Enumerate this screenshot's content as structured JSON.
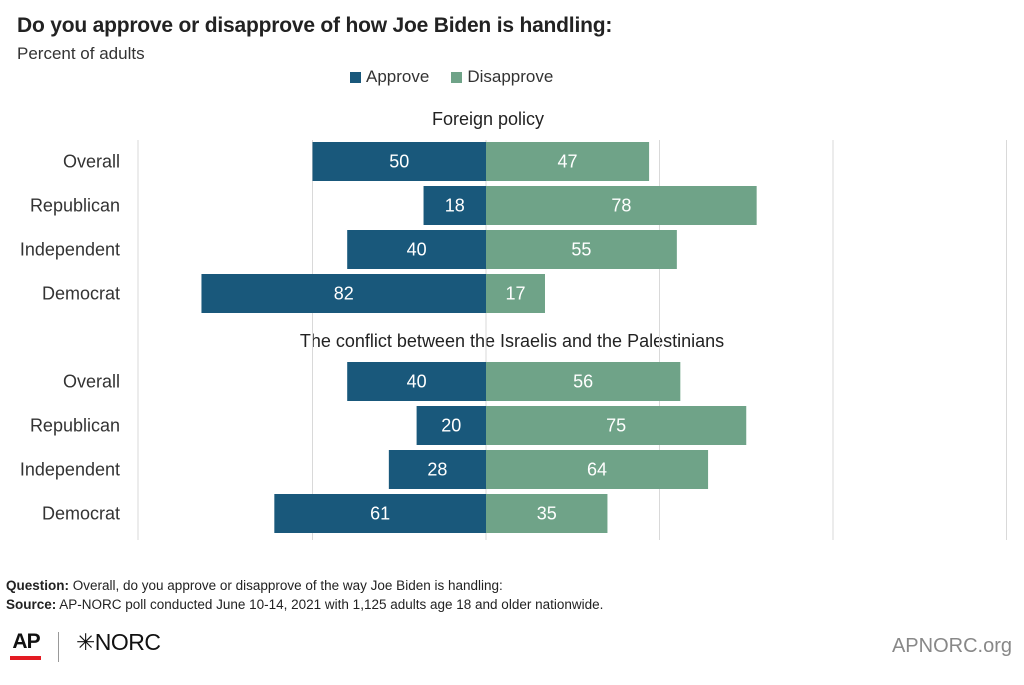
{
  "title": "Do you approve or disapprove of how Joe Biden is handling:",
  "subtitle": "Percent of adults",
  "legend": {
    "approve_label": "Approve",
    "disapprove_label": "Disapprove",
    "approve_color": "#19587b",
    "disapprove_color": "#6fa388"
  },
  "chart_data": {
    "type": "bar",
    "orientation": "horizontal-diverging",
    "categories": [
      "Overall",
      "Republican",
      "Independent",
      "Democrat"
    ],
    "panels": [
      {
        "title": "Foreign policy",
        "series": [
          {
            "name": "Approve",
            "values": [
              50,
              18,
              40,
              82
            ]
          },
          {
            "name": "Disapprove",
            "values": [
              47,
              78,
              55,
              17
            ]
          }
        ]
      },
      {
        "title": "The conflict between the Israelis and the Palestinians",
        "series": [
          {
            "name": "Approve",
            "values": [
              40,
              20,
              28,
              61
            ]
          },
          {
            "name": "Disapprove",
            "values": [
              56,
              75,
              64,
              35
            ]
          }
        ]
      }
    ],
    "legend": "top",
    "grid": true
  },
  "footer": {
    "question_label": "Question:",
    "question_text": " Overall, do you approve or disapprove of the way Joe Biden is handling:",
    "source_label": "Source:",
    "source_text": " AP-NORC poll conducted June 10-14, 2021 with 1,125 adults age 18 and older nationwide."
  },
  "logos": {
    "ap": "AP",
    "norc": "✳NORC",
    "site": "APNORC.org"
  }
}
